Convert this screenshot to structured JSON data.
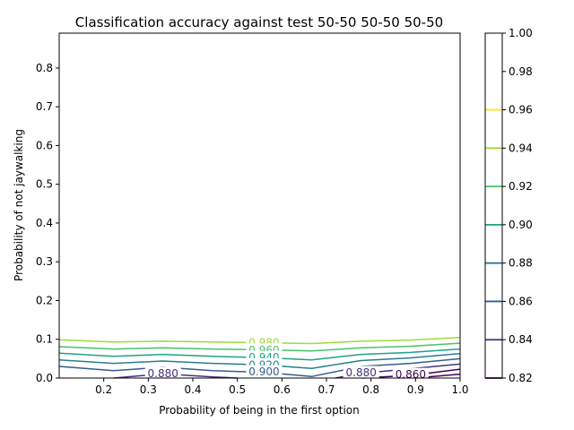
{
  "chart_data": {
    "type": "contour",
    "title": "Classification accuracy against test 50-50 50-50 50-50",
    "xlabel": "Probability of being in the first option",
    "ylabel": "Probability of not jaywalking",
    "xlim": [
      0.1,
      1.0
    ],
    "ylim": [
      0.0,
      0.89
    ],
    "x_ticks": [
      "0.2",
      "0.3",
      "0.4",
      "0.5",
      "0.6",
      "0.7",
      "0.8",
      "0.9",
      "1.0"
    ],
    "y_ticks": [
      "0.0",
      "0.1",
      "0.2",
      "0.3",
      "0.4",
      "0.5",
      "0.6",
      "0.7",
      "0.8"
    ],
    "colorbar": {
      "range": [
        0.82,
        1.0
      ],
      "ticks": [
        "0.82",
        "0.84",
        "0.86",
        "0.88",
        "0.90",
        "0.92",
        "0.94",
        "0.96",
        "0.98",
        "1.00"
      ],
      "level_colors": [
        "#440154",
        "#46327e",
        "#365c8d",
        "#277f8e",
        "#1fa187",
        "#4ac16d",
        "#a0da39",
        "#fde725"
      ]
    },
    "contours": [
      {
        "level": "0.980",
        "color": "#a0da39",
        "label_x": 0.56,
        "label_y": 0.093,
        "x": [
          0.1,
          0.222,
          0.333,
          0.444,
          0.556,
          0.667,
          0.778,
          0.889,
          1.0
        ],
        "y": [
          0.099,
          0.093,
          0.095,
          0.093,
          0.091,
          0.089,
          0.095,
          0.098,
          0.105
        ]
      },
      {
        "level": "0.960",
        "color": "#4ac16d",
        "label_x": 0.56,
        "label_y": 0.073,
        "x": [
          0.1,
          0.222,
          0.333,
          0.444,
          0.556,
          0.667,
          0.778,
          0.889,
          1.0
        ],
        "y": [
          0.081,
          0.075,
          0.078,
          0.075,
          0.073,
          0.07,
          0.078,
          0.082,
          0.09
        ]
      },
      {
        "level": "0.940",
        "color": "#1fa187",
        "label_x": 0.56,
        "label_y": 0.054,
        "x": [
          0.1,
          0.222,
          0.333,
          0.444,
          0.556,
          0.667,
          0.778,
          0.889,
          1.0
        ],
        "y": [
          0.064,
          0.056,
          0.061,
          0.056,
          0.053,
          0.047,
          0.061,
          0.066,
          0.075
        ]
      },
      {
        "level": "0.920",
        "color": "#277f8e",
        "label_x": 0.56,
        "label_y": 0.035,
        "x": [
          0.1,
          0.222,
          0.333,
          0.444,
          0.556,
          0.667,
          0.778,
          0.889,
          1.0
        ],
        "y": [
          0.047,
          0.038,
          0.044,
          0.038,
          0.034,
          0.025,
          0.045,
          0.052,
          0.063
        ]
      },
      {
        "level": "0.900",
        "color": "#365c8d",
        "label_x": 0.56,
        "label_y": 0.017,
        "x": [
          0.1,
          0.222,
          0.333,
          0.444,
          0.556,
          0.667,
          0.778,
          0.889,
          1.0
        ],
        "y": [
          0.03,
          0.019,
          0.028,
          0.019,
          0.015,
          0.004,
          0.03,
          0.038,
          0.05
        ]
      },
      {
        "level": "0.880",
        "color": "#46327e",
        "label_x": 0.333,
        "label_y": 0.013,
        "x": [
          0.222,
          0.333,
          0.444,
          0.5
        ],
        "y": [
          0.0,
          0.011,
          0.003,
          0.0
        ]
      },
      {
        "level": "0.880",
        "color": "#46327e",
        "label_x": 0.778,
        "label_y": 0.015,
        "x": [
          0.72,
          0.778,
          0.889,
          1.0
        ],
        "y": [
          0.0,
          0.012,
          0.024,
          0.036
        ]
      },
      {
        "level": "0.860",
        "color": "#440154",
        "label_x": 0.889,
        "label_y": 0.01,
        "x": [
          0.78,
          0.889,
          1.0
        ],
        "y": [
          0.0,
          0.007,
          0.023
        ]
      },
      {
        "level": "0.840",
        "color": "#440154",
        "label_x": null,
        "label_y": null,
        "x": [
          0.9,
          1.0
        ],
        "y": [
          0.0,
          0.01
        ]
      }
    ]
  }
}
